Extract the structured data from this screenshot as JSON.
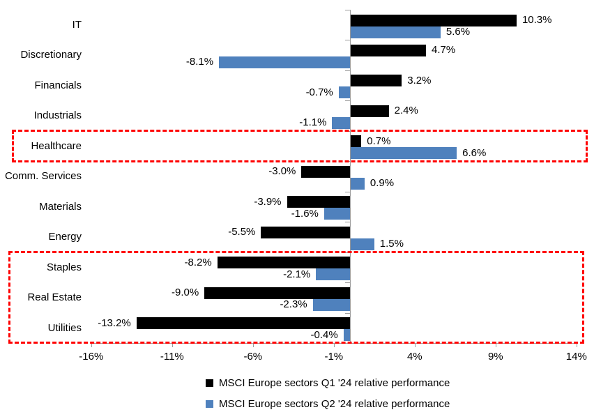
{
  "chart_data": {
    "type": "bar",
    "orientation": "horizontal",
    "title": "",
    "categories": [
      "IT",
      "Discretionary",
      "Financials",
      "Industrials",
      "Healthcare",
      "Comm. Services",
      "Materials",
      "Energy",
      "Staples",
      "Real Estate",
      "Utilities"
    ],
    "series": [
      {
        "name": "MSCI Europe sectors Q1 '24 relative performance",
        "color": "#000000",
        "values": [
          10.3,
          4.7,
          3.2,
          2.4,
          0.7,
          -3.0,
          -3.9,
          -5.5,
          -8.2,
          -9.0,
          -13.2
        ],
        "labels": [
          "10.3%",
          "4.7%",
          "3.2%",
          "2.4%",
          "0.7%",
          "-3.0%",
          "-3.9%",
          "-5.5%",
          "-8.2%",
          "-9.0%",
          "-13.2%"
        ]
      },
      {
        "name": "MSCI Europe sectors Q2 '24 relative performance",
        "color": "#4f81bd",
        "values": [
          5.6,
          -8.1,
          -0.7,
          -1.1,
          6.6,
          0.9,
          -1.6,
          1.5,
          -2.1,
          -2.3,
          -0.4
        ],
        "labels": [
          "5.6%",
          "-8.1%",
          "-0.7%",
          "-1.1%",
          "6.6%",
          "0.9%",
          "-1.6%",
          "1.5%",
          "-2.1%",
          "-2.3%",
          "-0.4%"
        ]
      }
    ],
    "x_axis": {
      "min": -16,
      "max": 14,
      "tick_values": [
        -16,
        -11,
        -6,
        -1,
        4,
        9,
        14
      ],
      "tick_labels": [
        "-16%",
        "-11%",
        "-6%",
        "-1%",
        "4%",
        "9%",
        "14%"
      ]
    },
    "grid": false,
    "legend_position": "bottom",
    "highlights": [
      {
        "rows": [
          "Healthcare"
        ],
        "color": "#ff0000",
        "style": "dashed"
      },
      {
        "rows": [
          "Staples",
          "Real Estate",
          "Utilities"
        ],
        "color": "#ff0000",
        "style": "dashed"
      }
    ],
    "axis_color": "#9b9b9b"
  }
}
